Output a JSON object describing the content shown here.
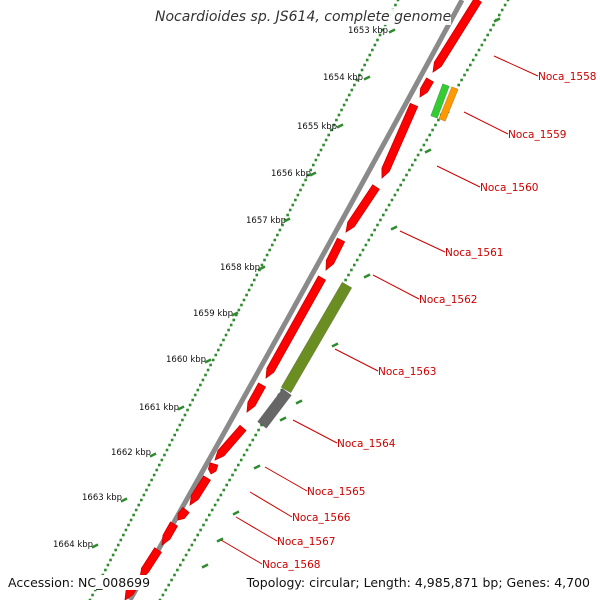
{
  "title": "Nocardioides sp. JS614, complete genome",
  "footer": {
    "accession": "Accession: NC_008699",
    "summary": "Topology: circular; Length: 4,985,871 bp; Genes: 4,700"
  },
  "kbp_ticks": [
    {
      "label": "1653 kbp"
    },
    {
      "label": "1654 kbp"
    },
    {
      "label": "1655 kbp"
    },
    {
      "label": "1656 kbp"
    },
    {
      "label": "1657 kbp"
    },
    {
      "label": "1658 kbp"
    },
    {
      "label": "1659 kbp"
    },
    {
      "label": "1660 kbp"
    },
    {
      "label": "1661 kbp"
    },
    {
      "label": "1662 kbp"
    },
    {
      "label": "1663 kbp"
    },
    {
      "label": "1664 kbp"
    }
  ],
  "gene_labels": [
    "Noca_1558",
    "Noca_1559",
    "Noca_1560",
    "Noca_1561",
    "Noca_1562",
    "Noca_1563",
    "Noca_1564",
    "Noca_1565",
    "Noca_1566",
    "Noca_1567",
    "Noca_1568"
  ],
  "colors": {
    "cds": "#ff0000",
    "cds_stroke": "#c80000",
    "backbone": "#8a8a8a",
    "tick": "#2e8b2e",
    "label": "#cc0000",
    "olive": "#6b8e23",
    "grey_feature": "#666666",
    "green_feature": "#33cc33",
    "orange_feature": "#ff9900"
  }
}
